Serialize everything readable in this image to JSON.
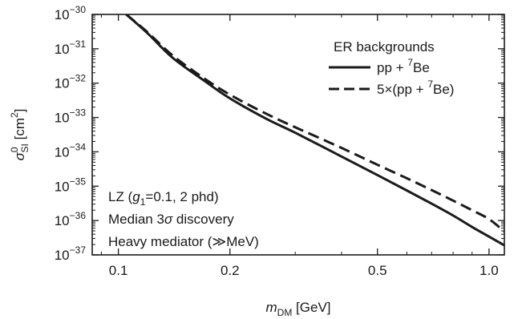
{
  "chart_data": {
    "type": "line",
    "xscale": "log",
    "yscale": "log",
    "xlim": [
      0.085,
      1.1
    ],
    "ylim": [
      1e-37,
      1e-30
    ],
    "x_ticks": [
      {
        "value": 0.1,
        "label": "0.1"
      },
      {
        "value": 0.2,
        "label": "0.2"
      },
      {
        "value": 0.5,
        "label": "0.5"
      },
      {
        "value": 1.0,
        "label": "1.0"
      }
    ],
    "y_ticks": [
      {
        "value": 1e-30,
        "base": "10",
        "exp": "−30"
      },
      {
        "value": 1e-31,
        "base": "10",
        "exp": "−31"
      },
      {
        "value": 1e-32,
        "base": "10",
        "exp": "−32"
      },
      {
        "value": 1e-33,
        "base": "10",
        "exp": "−33"
      },
      {
        "value": 1e-34,
        "base": "10",
        "exp": "−34"
      },
      {
        "value": 1e-35,
        "base": "10",
        "exp": "−35"
      },
      {
        "value": 1e-36,
        "base": "10",
        "exp": "−36"
      },
      {
        "value": 1e-37,
        "base": "10",
        "exp": "−37"
      }
    ],
    "xlabel": {
      "main": "m",
      "sub": "DM",
      "unit": " [GeV]"
    },
    "ylabel": {
      "main": "σ",
      "sup": "0",
      "sub": "SI",
      "unit": " [cm",
      "unit_sup": "2",
      "unit_end": "]"
    },
    "legend": {
      "title": "ER backgrounds",
      "position": "top-right",
      "entries": [
        {
          "style": "solid",
          "prefix": "pp + ",
          "sup": "7",
          "suffix": "Be"
        },
        {
          "style": "dashed",
          "prefix": "5×(pp + ",
          "sup": "7",
          "suffix": "Be)"
        }
      ]
    },
    "annotations": [
      {
        "parts": [
          {
            "t": "LZ ("
          },
          {
            "t": "g",
            "italic": true
          },
          {
            "t": "1",
            "sub": true
          },
          {
            "t": "=0.1, 2 phd)"
          }
        ]
      },
      {
        "parts": [
          {
            "t": "Median 3"
          },
          {
            "t": "σ",
            "italic": true
          },
          {
            "t": " discovery"
          }
        ]
      },
      {
        "parts": [
          {
            "t": "Heavy mediator (≫MeV)"
          }
        ]
      }
    ],
    "series": [
      {
        "style": "solid",
        "x": [
          0.105,
          0.12,
          0.14,
          0.17,
          0.2,
          0.25,
          0.3,
          0.4,
          0.5,
          0.6,
          0.7,
          0.8,
          0.9,
          1.0,
          1.1
        ],
        "y": [
          1e-30,
          2.8e-31,
          5.5e-32,
          1.2e-32,
          3.6e-33,
          9.3e-34,
          3.6e-34,
          7.3e-35,
          2.1e-35,
          7.5e-36,
          3.1e-36,
          1.4e-36,
          6.5e-37,
          3.4e-37,
          1.9e-37
        ]
      },
      {
        "style": "dashed",
        "x": [
          0.105,
          0.12,
          0.14,
          0.17,
          0.2,
          0.25,
          0.3,
          0.4,
          0.5,
          0.6,
          0.7,
          0.8,
          0.9,
          1.0,
          1.1
        ],
        "y": [
          1e-30,
          3e-31,
          6.4e-32,
          1.4e-32,
          4.6e-33,
          1.3e-33,
          5.2e-34,
          1.3e-34,
          4.2e-35,
          1.7e-35,
          7.7e-36,
          3.8e-36,
          2e-36,
          1.1e-36,
          4.8e-37
        ]
      }
    ]
  }
}
